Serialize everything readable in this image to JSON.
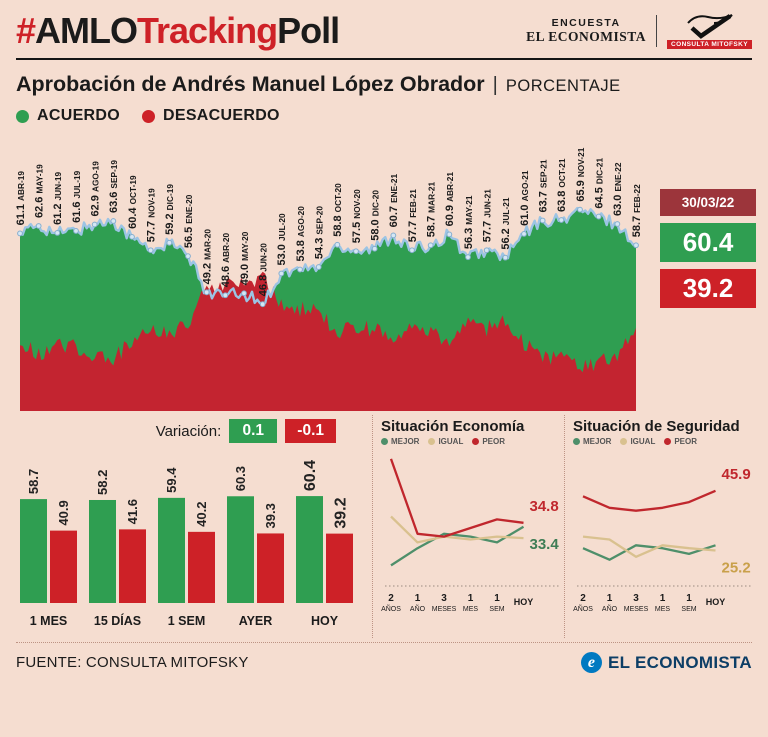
{
  "theme": {
    "background": "#f5ddd0",
    "green": "#2f9e51",
    "red": "#cd2127",
    "dark_red": "#9c353b",
    "tan": "#d9c18f",
    "blue_line": "#9cc4e4",
    "ee_blue": "#0079c1",
    "ee_dark_blue": "#0d3e66"
  },
  "header": {
    "title_hash": "#",
    "title_amlo": "AMLO",
    "title_tracking": "Tracking",
    "title_poll": "Poll",
    "encuesta_label": "ENCUESTA",
    "economista_label": "EL ECONOMISTA",
    "mitofsky_label": "CONSULTA MITOFSKY"
  },
  "main": {
    "title": "Aprobación de Andrés Manuel López Obrador",
    "separator": "|",
    "unit_label": "PORCENTAJE",
    "legend": [
      {
        "label": "ACUERDO",
        "color": "#2f9e51"
      },
      {
        "label": "DESACUERDO",
        "color": "#cd2127"
      }
    ]
  },
  "summary": {
    "date": "30/03/22",
    "acuerdo": "60.4",
    "desacuerdo": "39.2"
  },
  "variation": {
    "label": "Variación:",
    "acuerdo": "0.1",
    "desacuerdo": "-0.1"
  },
  "footer": {
    "source": "FUENTE: CONSULTA MITOFSKY",
    "logo_letter": "e",
    "brand": "EL ECONOMISTA"
  },
  "chart_data": [
    {
      "id": "approval-trend",
      "type": "area",
      "title": "Aprobación de Andrés Manuel López Obrador (%)",
      "legend": [
        "ACUERDO",
        "DESACUERDO"
      ],
      "legend_position": "top-left",
      "grid": false,
      "ylim": [
        26,
        83
      ],
      "colors": {
        "acuerdo": "#2f9e51",
        "desacuerdo": "#c32430",
        "line": "#9cc4e4"
      },
      "points": [
        {
          "label": "ABR-19",
          "value": 61.1
        },
        {
          "label": "MAY-19",
          "value": 62.6
        },
        {
          "label": "JUN-19",
          "value": 61.2
        },
        {
          "label": "JUL-19",
          "value": 61.6
        },
        {
          "label": "AGO-19",
          "value": 62.9
        },
        {
          "label": "SEP-19",
          "value": 63.6
        },
        {
          "label": "OCT-19",
          "value": 60.4
        },
        {
          "label": "NOV-19",
          "value": 57.7
        },
        {
          "label": "DIC-19",
          "value": 59.2
        },
        {
          "label": "ENE-20",
          "value": 56.5
        },
        {
          "label": "MAR-20",
          "value": 49.2
        },
        {
          "label": "ABR-20",
          "value": 48.6
        },
        {
          "label": "MAY-20",
          "value": 49.0
        },
        {
          "label": "JUN-20",
          "value": 46.8
        },
        {
          "label": "JUL-20",
          "value": 53.0
        },
        {
          "label": "AGO-20",
          "value": 53.8
        },
        {
          "label": "SEP-20",
          "value": 54.3
        },
        {
          "label": "OCT-20",
          "value": 58.8
        },
        {
          "label": "NOV-20",
          "value": 57.5
        },
        {
          "label": "DIC-20",
          "value": 58.0
        },
        {
          "label": "ENE-21",
          "value": 60.7
        },
        {
          "label": "FEB-21",
          "value": 57.7
        },
        {
          "label": "MAR-21",
          "value": 58.7
        },
        {
          "label": "ABR-21",
          "value": 60.9
        },
        {
          "label": "MAY-21",
          "value": 56.3
        },
        {
          "label": "JUN-21",
          "value": 57.7
        },
        {
          "label": "JUL-21",
          "value": 56.2
        },
        {
          "label": "AGO-21",
          "value": 61.0
        },
        {
          "label": "SEP-21",
          "value": 63.7
        },
        {
          "label": "OCT-21",
          "value": 63.8
        },
        {
          "label": "NOV-21",
          "value": 65.9
        },
        {
          "label": "DIC-21",
          "value": 64.5
        },
        {
          "label": "ENE-22",
          "value": 63.0
        },
        {
          "label": "FEB-22",
          "value": 58.7
        }
      ],
      "current": {
        "date": "30/03/22",
        "acuerdo": 60.4,
        "desacuerdo": 39.2
      }
    },
    {
      "id": "recent-comparison",
      "type": "bar",
      "categories": [
        "1 MES",
        "15 DÍAS",
        "1 SEM",
        "AYER",
        "HOY"
      ],
      "series": [
        {
          "name": "ACUERDO",
          "color": "#2f9e51",
          "values": [
            58.7,
            58.2,
            59.4,
            60.3,
            60.4
          ]
        },
        {
          "name": "DESACUERDO",
          "color": "#cd2127",
          "values": [
            40.9,
            41.6,
            40.2,
            39.3,
            39.2
          ]
        }
      ],
      "variation": {
        "acuerdo": 0.1,
        "desacuerdo": -0.1
      }
    },
    {
      "id": "economy",
      "type": "line",
      "title": "Situación Economía",
      "x_ticks": [
        {
          "top": "2",
          "bottom": "AÑOS"
        },
        {
          "top": "1",
          "bottom": "AÑO"
        },
        {
          "top": "3",
          "bottom": "MESES"
        },
        {
          "top": "1",
          "bottom": "MES"
        },
        {
          "top": "1",
          "bottom": "SEM"
        },
        {
          "top": "HOY",
          "bottom": ""
        }
      ],
      "series": [
        {
          "name": "MEJOR",
          "color": "#4e8f6a",
          "values": [
            20,
            26,
            31,
            30,
            28,
            33.4
          ]
        },
        {
          "name": "IGUAL",
          "color": "#d9c18f",
          "values": [
            37,
            28,
            30,
            29,
            30,
            29.5
          ]
        },
        {
          "name": "PEOR",
          "color": "#c0272d",
          "values": [
            57,
            31,
            30,
            33,
            36,
            34.8
          ]
        }
      ],
      "end_labels": [
        {
          "series": "PEOR",
          "text": "34.8",
          "color": "#c0272d",
          "placement": "above"
        },
        {
          "series": "MEJOR",
          "text": "33.4",
          "color": "#3f7d55",
          "placement": "below"
        }
      ]
    },
    {
      "id": "security",
      "type": "line",
      "title": "Situación de Seguridad",
      "x_ticks": [
        {
          "top": "2",
          "bottom": "AÑOS"
        },
        {
          "top": "1",
          "bottom": "AÑO"
        },
        {
          "top": "3",
          "bottom": "MESES"
        },
        {
          "top": "1",
          "bottom": "MES"
        },
        {
          "top": "1",
          "bottom": "SEM"
        },
        {
          "top": "HOY",
          "bottom": ""
        }
      ],
      "series": [
        {
          "name": "MEJOR",
          "color": "#4e8f6a",
          "values": [
            26,
            22,
            27,
            26,
            24,
            27
          ]
        },
        {
          "name": "IGUAL",
          "color": "#d9c18f",
          "values": [
            30,
            29,
            23,
            27,
            26,
            25.2
          ]
        },
        {
          "name": "PEOR",
          "color": "#c0272d",
          "values": [
            44,
            40,
            39,
            40,
            42,
            45.9
          ]
        }
      ],
      "end_labels": [
        {
          "series": "PEOR",
          "text": "45.9",
          "color": "#c0272d",
          "placement": "above"
        },
        {
          "series": "IGUAL",
          "text": "25.2",
          "color": "#c9a04a",
          "placement": "below"
        }
      ]
    }
  ]
}
